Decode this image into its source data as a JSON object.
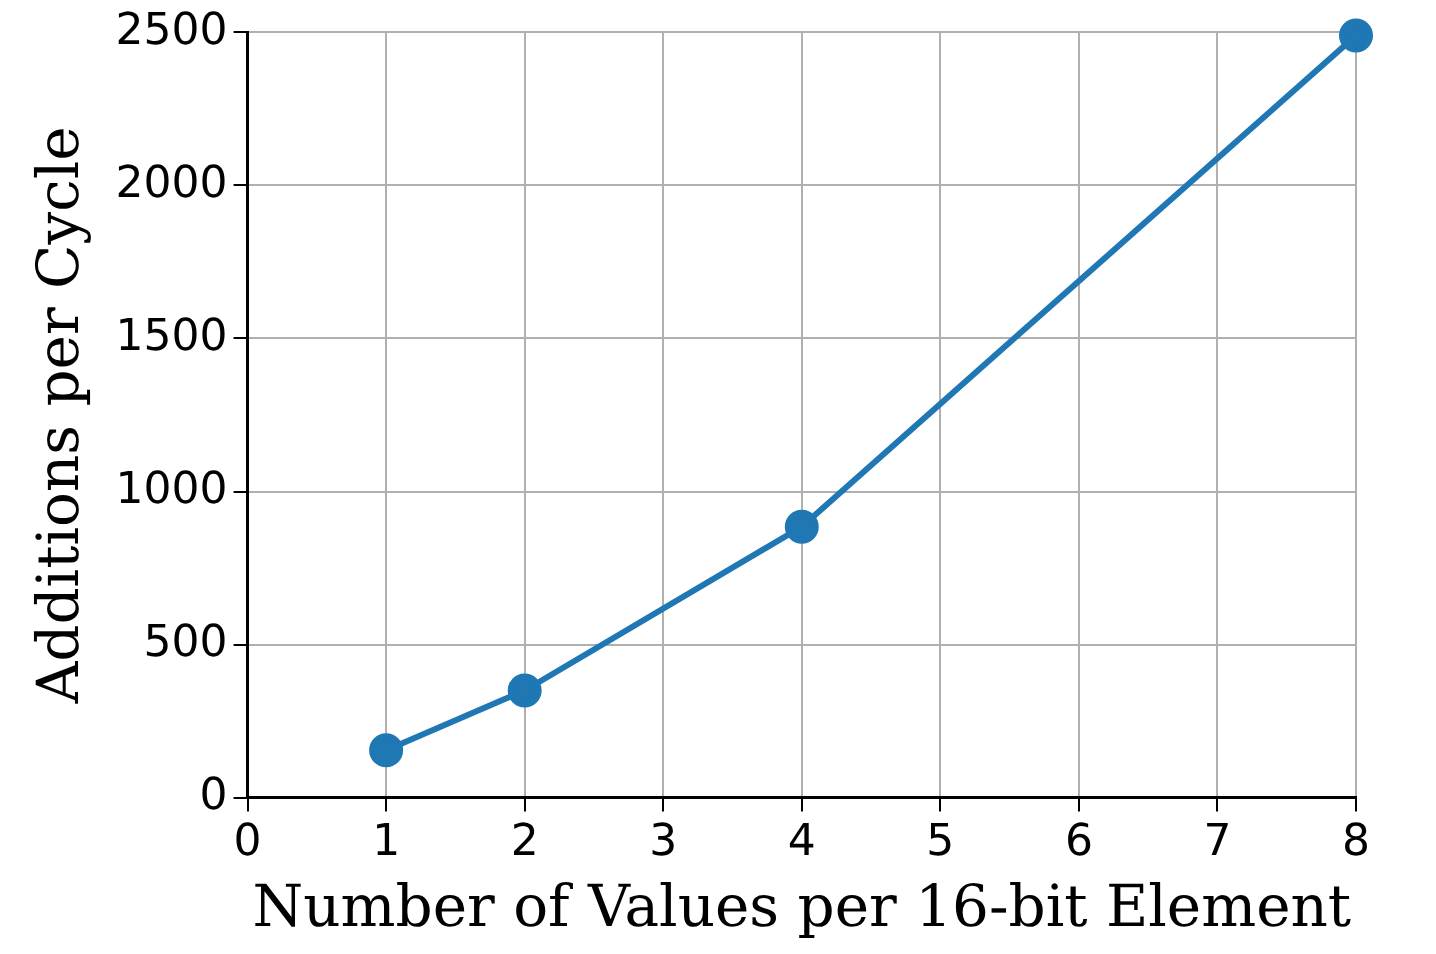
{
  "chart_data": {
    "type": "line",
    "xlabel": "Number of Values per 16-bit Element",
    "ylabel": "Additions per Cycle",
    "x": [
      1,
      2,
      4,
      8
    ],
    "series": [
      {
        "color": "#1f77b4",
        "values": [
          155,
          350,
          885,
          2490
        ]
      }
    ],
    "xlim": [
      0,
      8
    ],
    "xticks": [
      0,
      1,
      2,
      3,
      4,
      5,
      6,
      7,
      8
    ],
    "ylim": [
      0,
      2500
    ],
    "yticks": [
      0,
      500,
      1000,
      1500,
      2000,
      2500
    ],
    "grid": true,
    "legend": false,
    "marker": "circle",
    "line_style": "solid"
  }
}
